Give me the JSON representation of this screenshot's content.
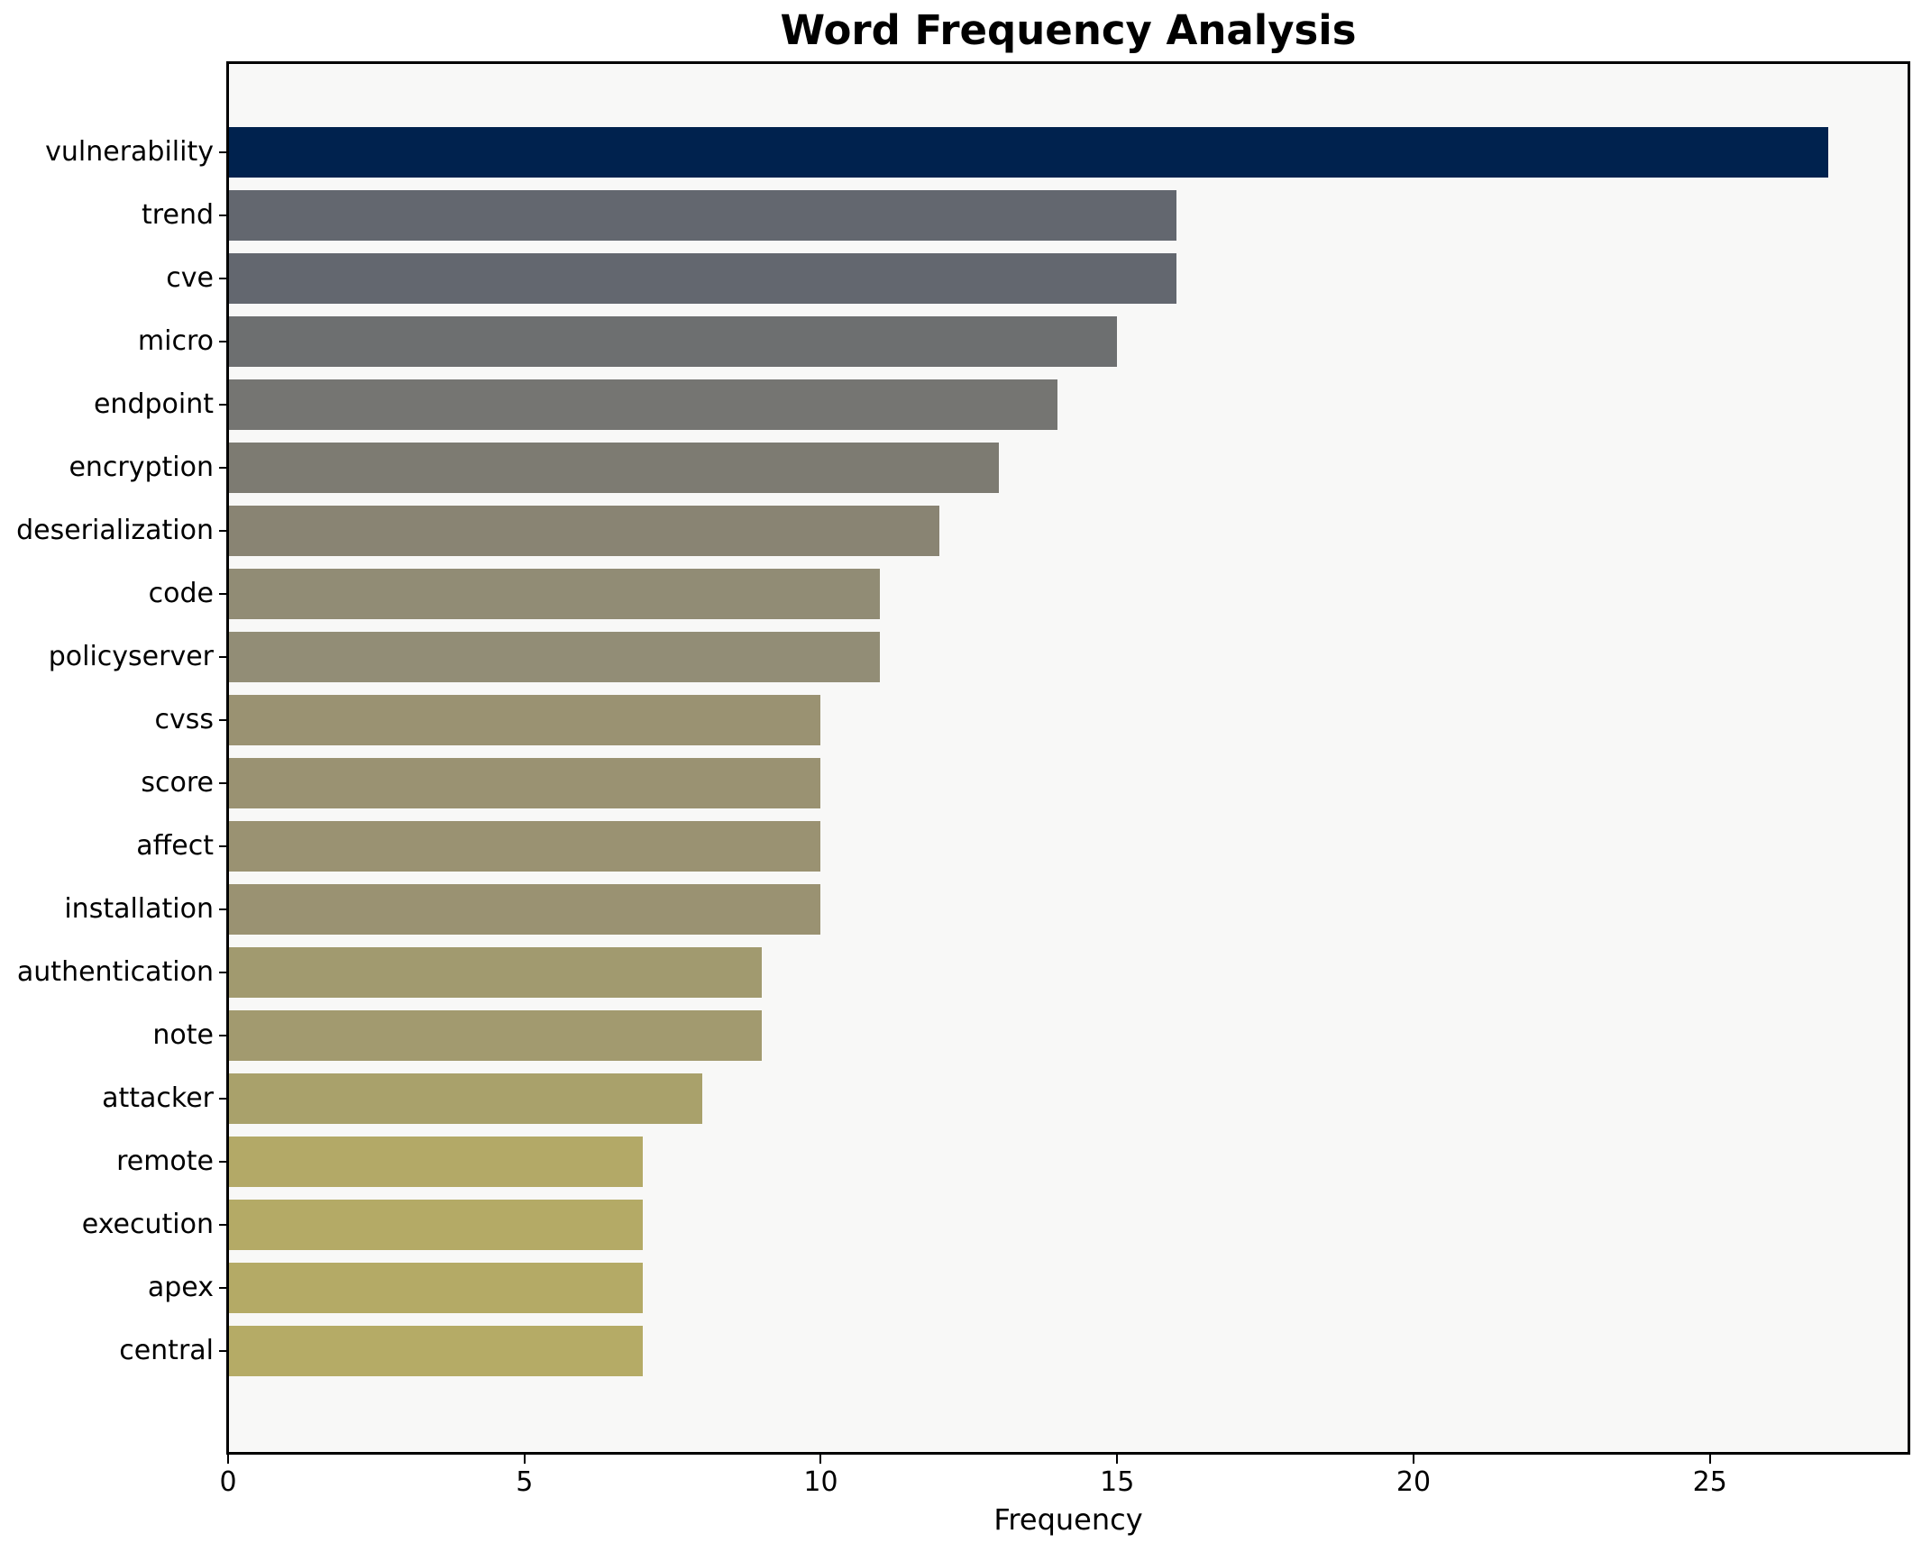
{
  "title": "Word Frequency Analysis",
  "chart_data": {
    "type": "bar",
    "orientation": "horizontal",
    "title": "Word Frequency Analysis",
    "xlabel": "Frequency",
    "ylabel": "",
    "categories": [
      "vulnerability",
      "trend",
      "cve",
      "micro",
      "endpoint",
      "encryption",
      "deserialization",
      "code",
      "policyserver",
      "cvss",
      "score",
      "affect",
      "installation",
      "authentication",
      "note",
      "attacker",
      "remote",
      "execution",
      "apex",
      "central"
    ],
    "values": [
      27,
      16,
      16,
      15,
      14,
      13,
      12,
      11,
      11,
      10,
      10,
      10,
      10,
      9,
      9,
      8,
      7,
      7,
      7,
      7
    ],
    "bar_colors": [
      "#00224e",
      "#63676f",
      "#63676f",
      "#6d6f70",
      "#757572",
      "#7d7b72",
      "#898473",
      "#918c75",
      "#928d76",
      "#9a9272",
      "#9a9272",
      "#9a9272",
      "#9a9272",
      "#a19a6f",
      "#a29a6f",
      "#a9a16b",
      "#b3a967",
      "#b4aa66",
      "#b4aa66",
      "#b5ab66"
    ],
    "xlim": [
      0,
      28.35
    ],
    "xticks": [
      0,
      5,
      10,
      15,
      20,
      25
    ],
    "grid": false,
    "legend": null,
    "colors": {
      "plot_background": "#f8f8f7",
      "figure_background": "#ffffff",
      "spine": "#000000",
      "text": "#000000"
    }
  }
}
